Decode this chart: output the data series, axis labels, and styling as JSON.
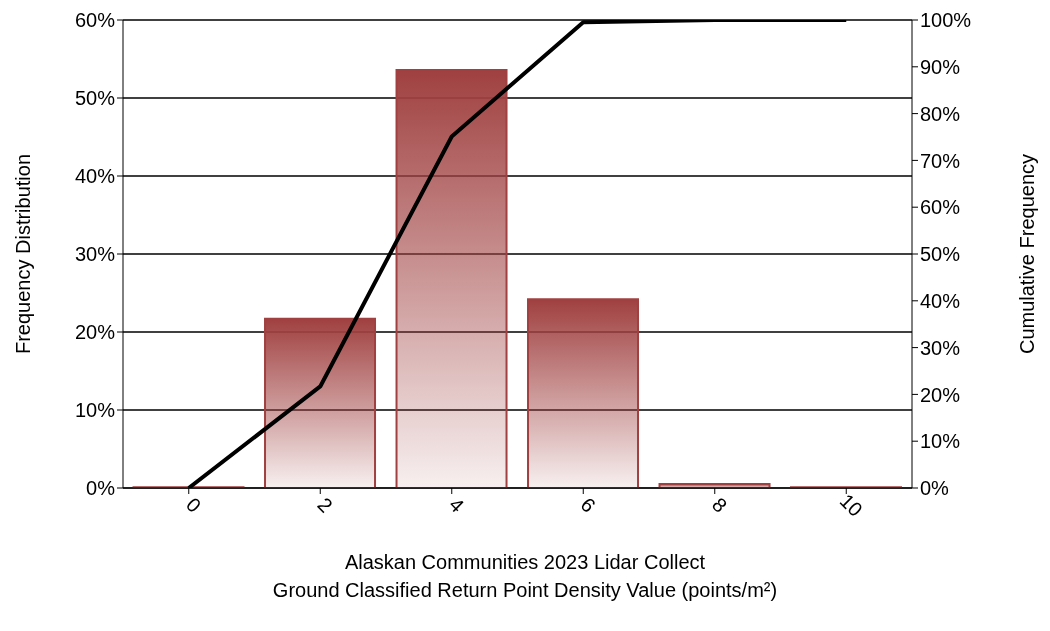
{
  "chart_data": {
    "type": "bar",
    "xlabel": "Alaskan Communities 2023 Lidar Collect\nGround Classified Return Point Density Value (points/m²)",
    "ylabel": "Frequency Distribution",
    "y2label": "Cumulative Frequency",
    "categories": [
      "0",
      "2",
      "4",
      "6",
      "8",
      "10"
    ],
    "series": [
      {
        "color": "#a04040",
        "values": [
          0.1,
          21.7,
          53.6,
          24.2,
          0.5,
          0.1
        ]
      },
      {
        "type": "line",
        "axis": "y2",
        "color": "#000000",
        "values": [
          0,
          21.7,
          75.1,
          99.5,
          100,
          100
        ]
      }
    ],
    "ylim": [
      0,
      60
    ],
    "yticks": [
      {
        "value": 0,
        "label": "0%"
      },
      {
        "value": 10,
        "label": "10%"
      },
      {
        "value": 20,
        "label": "20%"
      },
      {
        "value": 30,
        "label": "30%"
      },
      {
        "value": 40,
        "label": "40%"
      },
      {
        "value": 50,
        "label": "50%"
      },
      {
        "value": 60,
        "label": "60%"
      }
    ],
    "y2lim": [
      0,
      100
    ],
    "y2ticks": [
      {
        "value": 0,
        "label": "0%"
      },
      {
        "value": 10,
        "label": "10%"
      },
      {
        "value": 20,
        "label": "20%"
      },
      {
        "value": 30,
        "label": "30%"
      },
      {
        "value": 40,
        "label": "40%"
      },
      {
        "value": 50,
        "label": "50%"
      },
      {
        "value": 60,
        "label": "60%"
      },
      {
        "value": 70,
        "label": "70%"
      },
      {
        "value": 80,
        "label": "80%"
      },
      {
        "value": 90,
        "label": "90%"
      },
      {
        "value": 100,
        "label": "100%"
      }
    ],
    "grid": "y",
    "marker": "none",
    "line_style": "solid",
    "legend": false
  }
}
